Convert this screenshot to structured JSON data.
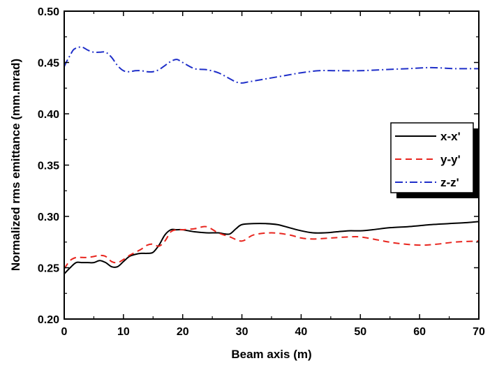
{
  "chart_data": {
    "type": "line",
    "title": "",
    "xlabel": "Beam axis (m)",
    "ylabel": "Normalized rms emittance (mm.mrad)",
    "xlim": [
      0,
      70
    ],
    "ylim": [
      0.2,
      0.5
    ],
    "xticks": [
      0,
      10,
      20,
      30,
      40,
      50,
      60,
      70
    ],
    "xtick_labels": [
      "0",
      "10",
      "20",
      "30",
      "40",
      "50",
      "60",
      "70"
    ],
    "yticks": [
      0.2,
      0.25,
      0.3,
      0.35,
      0.4,
      0.45,
      0.5
    ],
    "ytick_labels": [
      "0.20",
      "0.25",
      "0.30",
      "0.35",
      "0.40",
      "0.45",
      "0.50"
    ],
    "grid": false,
    "legend_position": "right",
    "series": [
      {
        "name": "x-x'",
        "color": "#000000",
        "dash": "solid",
        "x": [
          0,
          1,
          2,
          3,
          4,
          5,
          6,
          7,
          8,
          9,
          10,
          11,
          12,
          13,
          14,
          15,
          16,
          17,
          18,
          19,
          20,
          22,
          24,
          26,
          27,
          28,
          29,
          30,
          32,
          34,
          36,
          38,
          40,
          42,
          44,
          46,
          48,
          50,
          52,
          55,
          58,
          60,
          62,
          65,
          68,
          70
        ],
        "y": [
          0.244,
          0.25,
          0.255,
          0.255,
          0.255,
          0.255,
          0.257,
          0.255,
          0.251,
          0.251,
          0.256,
          0.261,
          0.263,
          0.264,
          0.264,
          0.265,
          0.272,
          0.282,
          0.287,
          0.287,
          0.287,
          0.285,
          0.284,
          0.284,
          0.283,
          0.283,
          0.288,
          0.292,
          0.293,
          0.293,
          0.292,
          0.289,
          0.286,
          0.284,
          0.284,
          0.285,
          0.286,
          0.286,
          0.287,
          0.289,
          0.29,
          0.291,
          0.292,
          0.293,
          0.294,
          0.295
        ]
      },
      {
        "name": "y-y'",
        "color": "#e8251e",
        "dash": "dashed",
        "x": [
          0,
          1,
          2,
          3,
          4,
          5,
          6,
          7,
          8,
          9,
          10,
          11,
          12,
          13,
          14,
          15,
          16,
          17,
          18,
          19,
          20,
          22,
          24,
          26,
          28,
          30,
          32,
          35,
          38,
          40,
          42,
          45,
          48,
          50,
          53,
          56,
          60,
          63,
          66,
          70
        ],
        "y": [
          0.249,
          0.257,
          0.26,
          0.26,
          0.26,
          0.261,
          0.262,
          0.261,
          0.256,
          0.255,
          0.258,
          0.262,
          0.265,
          0.268,
          0.272,
          0.273,
          0.271,
          0.276,
          0.285,
          0.287,
          0.287,
          0.288,
          0.29,
          0.284,
          0.28,
          0.276,
          0.282,
          0.284,
          0.282,
          0.279,
          0.278,
          0.279,
          0.28,
          0.28,
          0.277,
          0.274,
          0.272,
          0.273,
          0.275,
          0.276
        ]
      },
      {
        "name": "z-z'",
        "color": "#1f2fc9",
        "dash": "dashdot",
        "x": [
          0,
          0.5,
          1,
          1.5,
          2,
          3,
          4,
          5,
          6,
          7,
          8,
          9,
          10,
          11,
          12,
          13,
          14,
          15,
          16,
          17,
          18,
          19,
          20,
          22,
          24,
          26,
          28,
          29,
          30,
          31,
          33,
          35,
          38,
          40,
          43,
          46,
          50,
          54,
          58,
          62,
          66,
          70
        ],
        "y": [
          0.446,
          0.452,
          0.457,
          0.462,
          0.464,
          0.465,
          0.462,
          0.46,
          0.46,
          0.46,
          0.455,
          0.447,
          0.442,
          0.441,
          0.442,
          0.442,
          0.441,
          0.441,
          0.443,
          0.447,
          0.451,
          0.453,
          0.45,
          0.444,
          0.443,
          0.44,
          0.434,
          0.431,
          0.43,
          0.431,
          0.433,
          0.435,
          0.438,
          0.44,
          0.442,
          0.442,
          0.442,
          0.443,
          0.444,
          0.445,
          0.444,
          0.444
        ]
      }
    ]
  }
}
